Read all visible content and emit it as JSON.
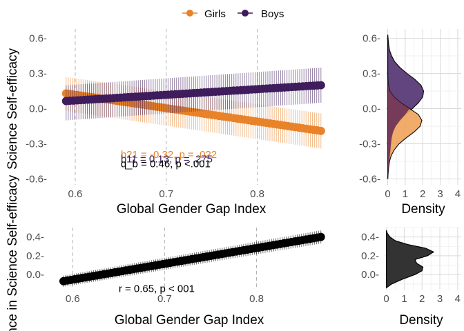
{
  "colors": {
    "girls": "#E8832A",
    "boys": "#3F1C5C",
    "overall": "#000000",
    "grid_major": "#d9d9d9",
    "grid_minor": "#eeeeee",
    "vline": "#b3b3b3",
    "density_boys": "#5a3a78",
    "density_girls": "#F0A35B",
    "density_overlap": "#6a3158",
    "density_overall": "#333333"
  },
  "legend": {
    "entries": [
      {
        "key": "girls",
        "label": "Girls"
      },
      {
        "key": "boys",
        "label": "Boys"
      }
    ]
  },
  "chart_data": [
    {
      "type": "line",
      "panel": "top-main",
      "xlabel": "Global Gender Gap Index",
      "ylabel": "Science Self-efficacy",
      "xlim": [
        0.575,
        0.88
      ],
      "ylim": [
        -0.65,
        0.68
      ],
      "xticks": [
        0.6,
        0.7,
        0.8
      ],
      "xtick_labels": [
        "0.6",
        "0.7",
        "0.8"
      ],
      "yticks": [
        -0.6,
        -0.3,
        0.0,
        0.3,
        0.6
      ],
      "ytick_labels": [
        "-0.6-",
        "-0.3-",
        "0.0-",
        "0.3-",
        "0.6-"
      ],
      "vlines": [
        0.6,
        0.7,
        0.8
      ],
      "series": [
        {
          "name": "Girls",
          "key": "girls",
          "x": [
            0.59,
            0.87
          ],
          "y": [
            0.13,
            -0.19
          ],
          "ci_low": [
            -0.02,
            -0.34
          ],
          "ci_high": [
            0.27,
            -0.04
          ]
        },
        {
          "name": "Boys",
          "key": "boys",
          "x": [
            0.59,
            0.87
          ],
          "y": [
            0.065,
            0.2
          ],
          "ci_low": [
            -0.1,
            0.05
          ],
          "ci_high": [
            0.2,
            0.35
          ]
        }
      ],
      "annotations": [
        {
          "text": "b21 = -0.32, p = .022",
          "key": "girls",
          "x": 0.65,
          "y": -0.39
        },
        {
          "text": "b11 = 0.13, p = .275",
          "key": "boys",
          "x": 0.65,
          "y": -0.43
        },
        {
          "text": "q_b = 0.46, p <.001",
          "key": "overall",
          "x": 0.65,
          "y": -0.47
        }
      ]
    },
    {
      "type": "area",
      "panel": "top-density",
      "xlabel": "Density",
      "xlim": [
        -0.1,
        4.2
      ],
      "ylim": [
        -0.65,
        0.68
      ],
      "xticks": [
        0,
        1,
        2,
        3,
        4
      ],
      "xtick_labels": [
        "0",
        "1",
        "2",
        "3",
        "4"
      ],
      "yticks": [
        -0.6,
        -0.3,
        0.0,
        0.3,
        0.6
      ],
      "ytick_labels": [
        "-0.6-",
        "-0.3-",
        "0.0-",
        "0.3-",
        "0.6-"
      ],
      "series": [
        {
          "name": "Boys",
          "key": "boys",
          "y": [
            -0.6,
            -0.55,
            -0.5,
            -0.45,
            -0.4,
            -0.35,
            -0.3,
            -0.25,
            -0.2,
            -0.15,
            -0.1,
            -0.05,
            0.0,
            0.05,
            0.1,
            0.15,
            0.2,
            0.25,
            0.3,
            0.35,
            0.4,
            0.45,
            0.5,
            0.55,
            0.6,
            0.63
          ],
          "density": [
            0.0,
            0.02,
            0.05,
            0.08,
            0.12,
            0.15,
            0.18,
            0.22,
            0.3,
            0.45,
            0.7,
            1.0,
            1.4,
            1.75,
            2.0,
            2.05,
            1.9,
            1.55,
            1.1,
            0.7,
            0.4,
            0.22,
            0.1,
            0.05,
            0.02,
            0.0
          ]
        },
        {
          "name": "Girls",
          "key": "girls",
          "y": [
            -0.6,
            -0.55,
            -0.5,
            -0.45,
            -0.4,
            -0.35,
            -0.3,
            -0.25,
            -0.2,
            -0.15,
            -0.1,
            -0.05,
            0.0,
            0.05,
            0.1,
            0.15,
            0.2,
            0.25,
            0.3,
            0.35,
            0.4,
            0.45,
            0.5,
            0.55,
            0.6,
            0.63
          ],
          "density": [
            0.0,
            0.02,
            0.05,
            0.1,
            0.2,
            0.38,
            0.65,
            1.05,
            1.5,
            1.85,
            1.95,
            1.75,
            1.25,
            0.75,
            0.35,
            0.12,
            0.04,
            0.01,
            0.0,
            0.0,
            0.0,
            0.0,
            0.0,
            0.0,
            0.0,
            0.0
          ]
        }
      ]
    },
    {
      "type": "line",
      "panel": "bottom-main",
      "xlabel": "Global Gender Gap Index",
      "ylabel": "ence in Science Self-efficacy",
      "xlim": [
        0.575,
        0.88
      ],
      "ylim": [
        -0.16,
        0.5
      ],
      "xticks": [
        0.6,
        0.7,
        0.8
      ],
      "xtick_labels": [
        "0.6",
        "0.7",
        "0.8"
      ],
      "yticks": [
        0.0,
        0.2,
        0.4
      ],
      "ytick_labels": [
        "0.0-",
        "0.2-",
        "0.4-"
      ],
      "vlines": [
        0.6,
        0.7,
        0.8
      ],
      "series": [
        {
          "name": "",
          "key": "overall",
          "x": [
            0.59,
            0.87
          ],
          "y": [
            -0.07,
            0.4
          ],
          "ci_low": [
            -0.13,
            0.33
          ],
          "ci_high": [
            -0.01,
            0.47
          ]
        }
      ],
      "annotations": [
        {
          "text": "r = 0.65, p < 001",
          "key": "overall",
          "x": 0.65,
          "y": -0.15
        }
      ]
    },
    {
      "type": "area",
      "panel": "bottom-density",
      "xlabel": "Density",
      "xlim": [
        -0.1,
        4.2
      ],
      "ylim": [
        -0.16,
        0.5
      ],
      "xticks": [
        0,
        1,
        2,
        3,
        4
      ],
      "xtick_labels": [
        "0",
        "1",
        "2",
        "3",
        "4"
      ],
      "yticks": [
        0.0,
        0.2,
        0.4
      ],
      "ytick_labels": [
        "0.0-",
        "0.2-",
        "0.4-"
      ],
      "series": [
        {
          "name": "",
          "key": "overall",
          "y": [
            -0.14,
            -0.1,
            -0.05,
            0.0,
            0.04,
            0.08,
            0.12,
            0.16,
            0.2,
            0.24,
            0.28,
            0.32,
            0.36,
            0.4,
            0.44,
            0.47
          ],
          "density": [
            0.0,
            0.3,
            0.9,
            1.6,
            2.0,
            2.05,
            1.7,
            1.6,
            2.3,
            2.65,
            2.2,
            1.2,
            0.5,
            0.2,
            0.05,
            0.0
          ]
        }
      ]
    }
  ]
}
